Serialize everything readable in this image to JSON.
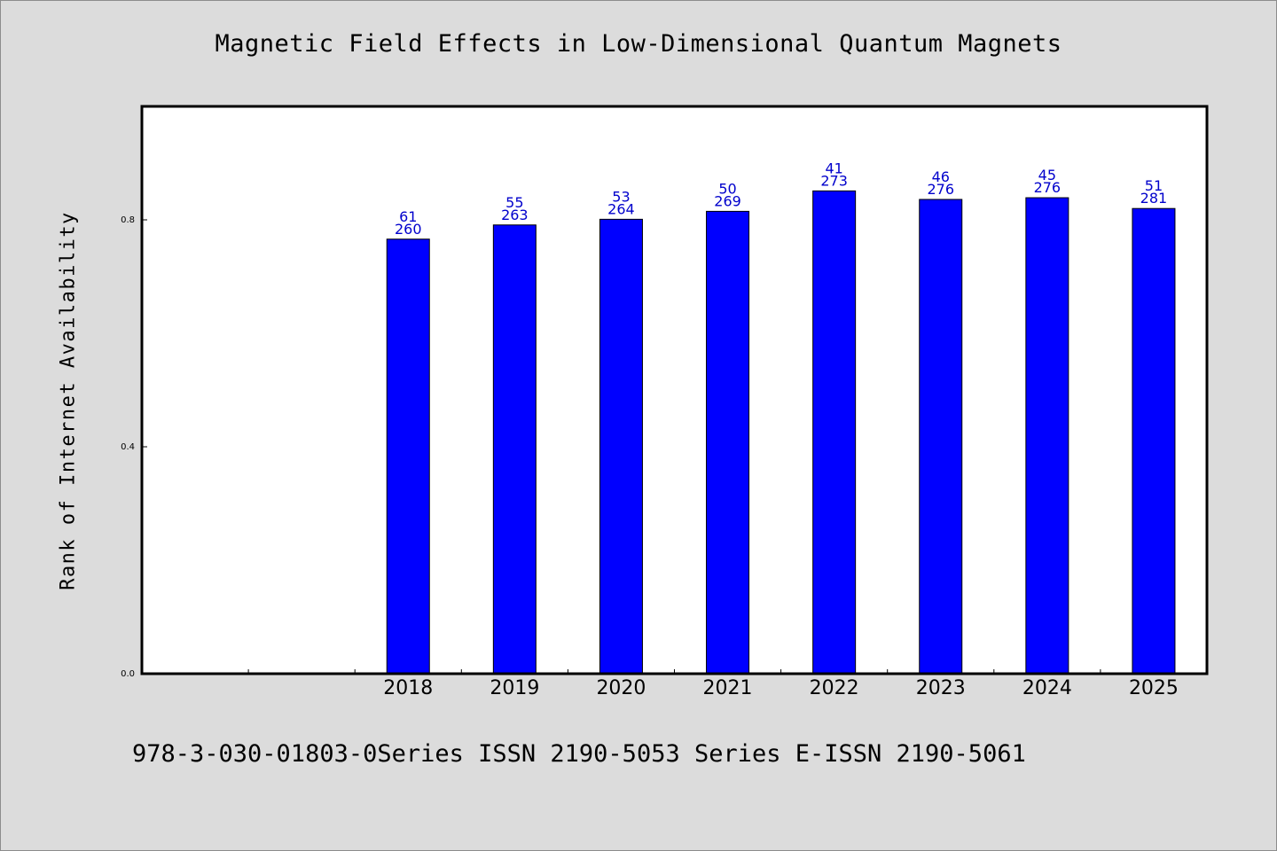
{
  "chart_data": {
    "type": "bar",
    "title": "Magnetic Field Effects in Low-Dimensional Quantum Magnets",
    "xlabel": "",
    "ylabel": "Rank of Internet Availability",
    "categories": [
      "",
      "",
      "2018",
      "2019",
      "2020",
      "2021",
      "2022",
      "2023",
      "2024",
      "2025"
    ],
    "values": [
      null,
      null,
      0.766,
      0.791,
      0.801,
      0.815,
      0.851,
      0.836,
      0.839,
      0.82
    ],
    "bar_labels": [
      null,
      null,
      [
        "61",
        "260"
      ],
      [
        "55",
        "263"
      ],
      [
        "53",
        "264"
      ],
      [
        "50",
        "269"
      ],
      [
        "41",
        "273"
      ],
      [
        "46",
        "276"
      ],
      [
        "45",
        "276"
      ],
      [
        "51",
        "281"
      ]
    ],
    "ylim": [
      0,
      1.0
    ],
    "yticks": [
      0.0,
      0.4,
      0.8
    ],
    "ytick_labels": [
      "0.0",
      "0.4",
      "0.8"
    ],
    "grid": false,
    "colors": {
      "bar": "#0000ff",
      "label": "#0000cc",
      "background": "#dcdcdc",
      "plot_background": "#ffffff"
    }
  },
  "footer": "978-3-030-01803-0Series ISSN 2190-5053 Series E-ISSN 2190-5061"
}
